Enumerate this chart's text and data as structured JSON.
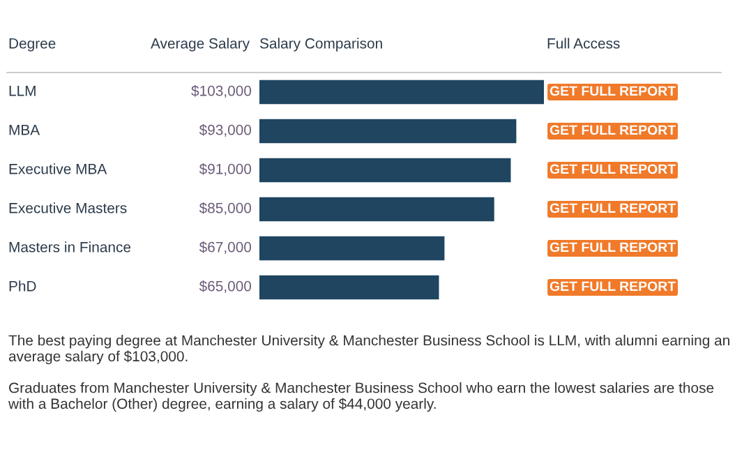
{
  "chart_data": {
    "type": "bar",
    "orientation": "horizontal",
    "categories": [
      "LLM",
      "MBA",
      "Executive MBA",
      "Executive Masters",
      "Masters in Finance",
      "PhD"
    ],
    "values": [
      103000,
      93000,
      91000,
      85000,
      67000,
      65000
    ],
    "value_labels": [
      "$103,000",
      "$93,000",
      "$91,000",
      "$85,000",
      "$67,000",
      "$65,000"
    ],
    "color": "#1f4560",
    "annotations": [
      "Degree",
      "Average Salary",
      "Salary Comparison",
      "Full Access",
      "GET FULL REPORT",
      "GET FULL REPORT",
      "GET FULL REPORT",
      "GET FULL REPORT",
      "GET FULL REPORT",
      "GET FULL REPORT",
      "The best paying degree at Manchester University & Manchester Business School is LLM, with alumni earning an average salary of $103,000.",
      "Graduates from Manchester University & Manchester Business School who earn the lowest salaries are those with a Bachelor (Other) degree, earning a salary of $44,000 yearly."
    ]
  }
}
